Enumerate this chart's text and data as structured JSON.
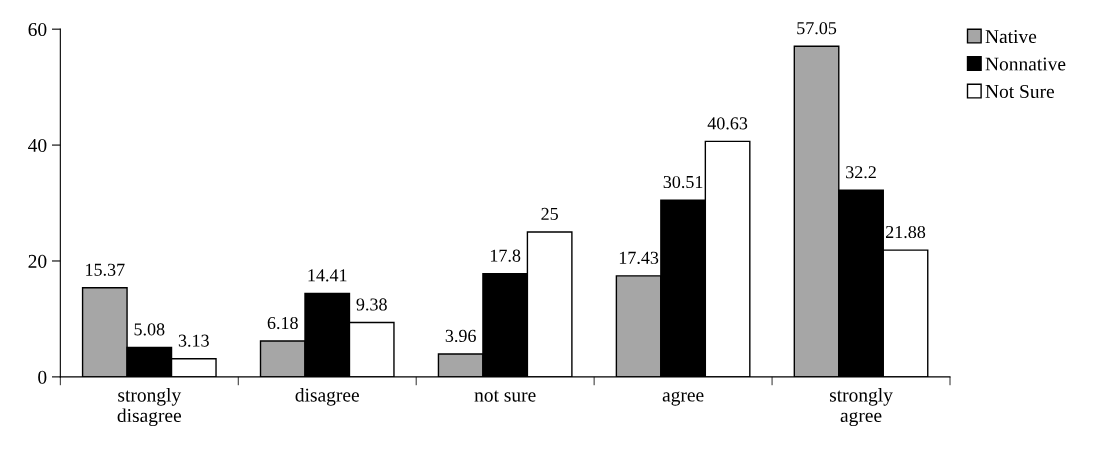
{
  "chart_data": {
    "type": "bar",
    "categories": [
      "strongly disagree",
      "disagree",
      "not sure",
      "agree",
      "strongly agree"
    ],
    "series": [
      {
        "name": "Native",
        "color": "#a6a6a6",
        "values": [
          15.37,
          6.18,
          3.96,
          17.43,
          57.05
        ]
      },
      {
        "name": "Nonnative",
        "color": "#000000",
        "values": [
          5.08,
          14.41,
          17.8,
          30.51,
          32.2
        ]
      },
      {
        "name": "Not Sure",
        "color": "#ffffff",
        "values": [
          3.13,
          9.38,
          25,
          40.63,
          21.88
        ]
      }
    ],
    "ylim": [
      0,
      60
    ],
    "yticks": [
      0,
      20,
      40,
      60
    ],
    "data_labels": true,
    "grid": false,
    "legend": "top right"
  }
}
